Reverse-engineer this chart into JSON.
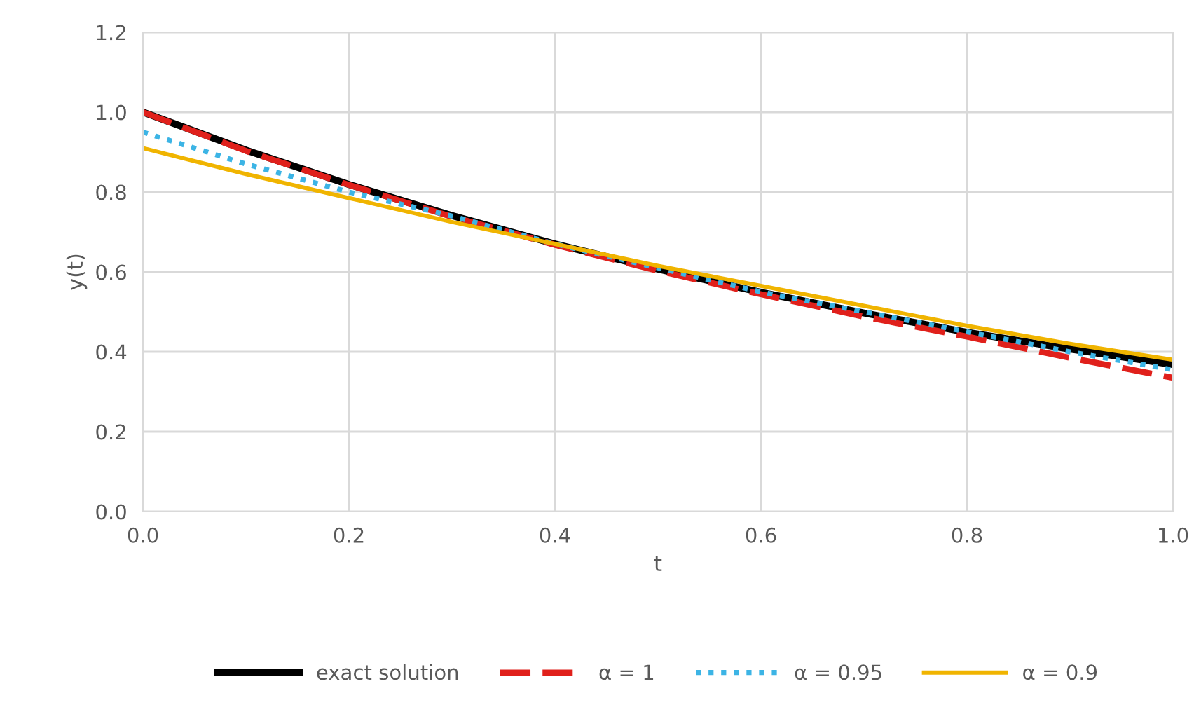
{
  "chart_data": {
    "type": "line",
    "xlabel": "t",
    "ylabel": "y(t)",
    "x": [
      0,
      0.1,
      0.2,
      0.3,
      0.4,
      0.5,
      0.6,
      0.7,
      0.8,
      0.9,
      1.0
    ],
    "series": [
      {
        "name": "exact solution",
        "color": "#000000",
        "line_style": "solid",
        "values": [
          1.0,
          0.905,
          0.819,
          0.741,
          0.67,
          0.607,
          0.549,
          0.497,
          0.449,
          0.407,
          0.368
        ]
      },
      {
        "name": "α = 1",
        "color": "#e0201b",
        "line_style": "dashed",
        "values": [
          1.0,
          0.903,
          0.818,
          0.738,
          0.668,
          0.603,
          0.544,
          0.488,
          0.438,
          0.385,
          0.335
        ]
      },
      {
        "name": "α = 0.95",
        "color": "#3cb4e5",
        "line_style": "dotted",
        "values": [
          0.95,
          0.87,
          0.8,
          0.74,
          0.67,
          0.61,
          0.55,
          0.5,
          0.45,
          0.4,
          0.355
        ]
      },
      {
        "name": "α = 0.9",
        "color": "#f0b400",
        "line_style": "solid",
        "values": [
          0.91,
          0.845,
          0.785,
          0.725,
          0.67,
          0.615,
          0.565,
          0.515,
          0.465,
          0.42,
          0.38
        ]
      }
    ],
    "xlim": [
      0,
      1.0
    ],
    "xticks": [
      {
        "value": 0,
        "label": "0.0"
      },
      {
        "value": 0.2,
        "label": "0.2"
      },
      {
        "value": 0.4,
        "label": "0.4"
      },
      {
        "value": 0.6,
        "label": "0.6"
      },
      {
        "value": 0.8,
        "label": "0.8"
      },
      {
        "value": 1.0,
        "label": "1.0"
      }
    ],
    "ylim": [
      0,
      1.2
    ],
    "yticks": [
      {
        "value": 0,
        "label": "0.0"
      },
      {
        "value": 0.2,
        "label": "0.2"
      },
      {
        "value": 0.4,
        "label": "0.4"
      },
      {
        "value": 0.6,
        "label": "0.6"
      },
      {
        "value": 0.8,
        "label": "0.8"
      },
      {
        "value": 1.0,
        "label": "1.0"
      },
      {
        "value": 1.2,
        "label": "1.2"
      }
    ],
    "grid": true,
    "legend": "bottom",
    "marker": "none"
  }
}
